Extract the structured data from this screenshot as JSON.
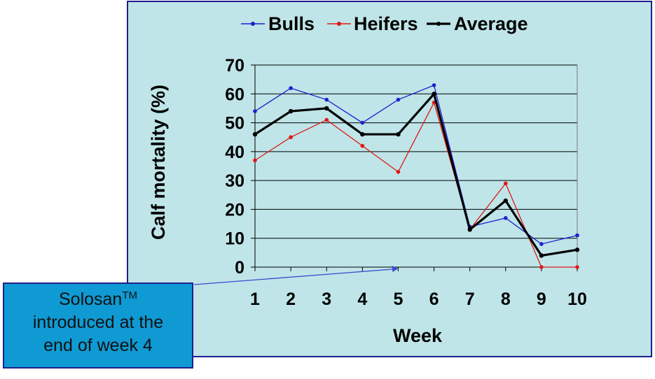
{
  "chart_data": {
    "type": "line",
    "x": [
      1,
      2,
      3,
      4,
      5,
      6,
      7,
      8,
      9,
      10
    ],
    "xlabel": "Week",
    "ylabel": "Calf mortality (%)",
    "ylim": [
      0,
      70
    ],
    "yticks": [
      0,
      10,
      20,
      30,
      40,
      50,
      60,
      70
    ],
    "grid": "horizontal",
    "legend_position": "top",
    "series": [
      {
        "name": "Bulls",
        "color": "#1f1fd0",
        "values": [
          54,
          62,
          58,
          50,
          58,
          63,
          14,
          17,
          8,
          11
        ]
      },
      {
        "name": "Heifers",
        "color": "#e01818",
        "values": [
          37,
          45,
          51,
          42,
          33,
          57,
          13,
          29,
          0,
          0
        ]
      },
      {
        "name": "Average",
        "color": "#000000",
        "values": [
          46,
          54,
          55,
          46,
          46,
          60,
          13,
          23,
          4,
          6
        ]
      }
    ]
  },
  "callout": {
    "text_before_sup": "Solosan",
    "sup": "TM",
    "line2": "introduced at the",
    "line3": "end of  week 4",
    "arrow_target_week": 5,
    "arrow_color": "#3a4bd0"
  }
}
